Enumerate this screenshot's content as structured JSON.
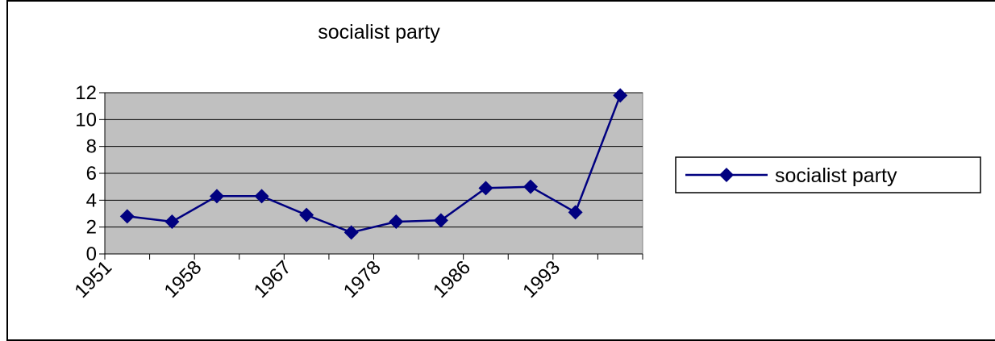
{
  "chart_data": {
    "type": "line",
    "title": "socialist party",
    "xlabel": "",
    "ylabel": "",
    "x_tick_labels": [
      "1951",
      "1958",
      "1967",
      "1978",
      "1986",
      "1993"
    ],
    "x_tick_positions": [
      0,
      2,
      4,
      6,
      8,
      10
    ],
    "ylim": [
      0,
      12
    ],
    "y_ticks": [
      0,
      2,
      4,
      6,
      8,
      10,
      12
    ],
    "grid": true,
    "legend_placement": "right",
    "colors": {
      "series": "#000080",
      "plot_bg": "#c0c0c0",
      "grid": "#000000"
    },
    "series": [
      {
        "name": "socialist party",
        "values": [
          2.8,
          2.4,
          4.3,
          4.3,
          2.9,
          1.6,
          2.4,
          2.5,
          4.9,
          5.0,
          3.1,
          11.8
        ]
      }
    ]
  }
}
